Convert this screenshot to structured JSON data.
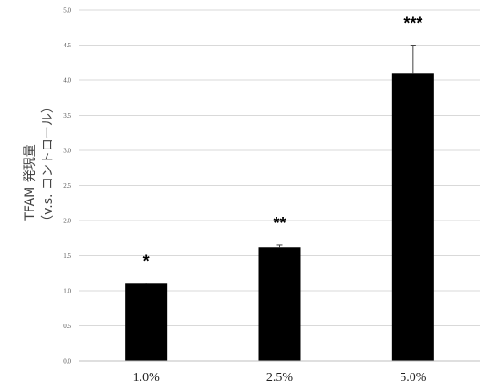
{
  "chart_data": {
    "type": "bar",
    "categories": [
      "1.0%",
      "2.5%",
      "5.0%"
    ],
    "values": [
      1.1,
      1.62,
      4.1
    ],
    "error_bars": [
      0.01,
      0.03,
      0.4
    ],
    "significance": [
      "*",
      "**",
      "***"
    ],
    "ylabel_line1": "TFAM 発現量",
    "ylabel_line2": "（v.s. コントロール）",
    "ylim": [
      0,
      5
    ],
    "yticks": [
      "0.0",
      "0.5",
      "1.0",
      "1.5",
      "2.0",
      "2.5",
      "3.0",
      "3.5",
      "4.0",
      "4.5",
      "5.0"
    ],
    "grid": true,
    "bar_color": "#000000",
    "grid_color": "#d9d9d9"
  }
}
